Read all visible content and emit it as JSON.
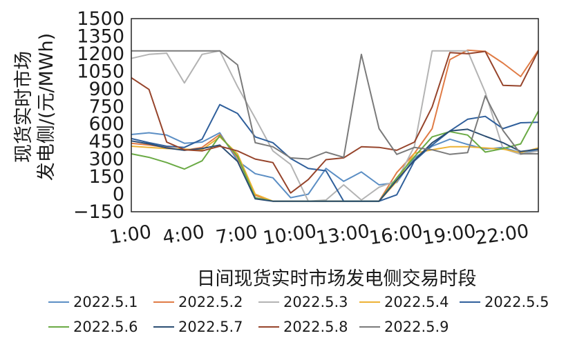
{
  "chart_data": {
    "type": "line",
    "xlabel": "日间现货实时市场发电侧交易时段",
    "ylabel_line1": "现货实时市场",
    "ylabel_line2": "发电侧/(元/MWh)",
    "x": [
      1,
      2,
      3,
      4,
      5,
      6,
      7,
      8,
      9,
      10,
      11,
      12,
      13,
      14,
      15,
      16,
      17,
      18,
      19,
      20,
      21,
      22,
      23,
      24
    ],
    "xtick_labels": [
      "1:00",
      "4:00",
      "7:00",
      "10:00",
      "13:00",
      "16:00",
      "19:00",
      "22:00"
    ],
    "xtick_positions": [
      1,
      4,
      7,
      10,
      13,
      16,
      19,
      22
    ],
    "ylim": [
      -150,
      1500
    ],
    "yticks": [
      -150,
      0,
      150,
      300,
      450,
      600,
      750,
      900,
      1050,
      1200,
      1350,
      1500
    ],
    "ytick_labels": [
      "−150",
      "0",
      "150",
      "300",
      "450",
      "600",
      "750",
      "900",
      "1050",
      "1200",
      "1350",
      "1500"
    ],
    "grid": false,
    "legend_position": "bottom",
    "series": [
      {
        "name": "2022.5.1",
        "color": "#5b8ec4",
        "values": [
          510,
          525,
          505,
          435,
          445,
          525,
          285,
          175,
          140,
          -30,
          0,
          220,
          110,
          190,
          80,
          100,
          310,
          410,
          470,
          425,
          385,
          400,
          355,
          375
        ]
      },
      {
        "name": "2022.5.2",
        "color": "#e07b45",
        "values": [
          435,
          420,
          400,
          375,
          400,
          510,
          310,
          -10,
          -60,
          -60,
          -60,
          -60,
          -60,
          -60,
          -60,
          185,
          350,
          560,
          1150,
          1230,
          1220,
          1120,
          1005,
          1230
        ]
      },
      {
        "name": "2022.5.3",
        "color": "#b3b3b3",
        "values": [
          1160,
          1195,
          1205,
          950,
          1195,
          1225,
          920,
          650,
          370,
          255,
          -60,
          -50,
          80,
          -50,
          60,
          115,
          410,
          1225,
          1225,
          1225,
          870,
          390,
          340,
          370
        ]
      },
      {
        "name": "2022.5.4",
        "color": "#edb234",
        "values": [
          410,
          400,
          390,
          385,
          380,
          490,
          345,
          0,
          -60,
          -60,
          -60,
          -60,
          -60,
          -60,
          -60,
          110,
          350,
          380,
          405,
          405,
          395,
          385,
          355,
          395
        ]
      },
      {
        "name": "2022.5.5",
        "color": "#2f5f9b",
        "values": [
          475,
          440,
          410,
          400,
          470,
          765,
          690,
          490,
          440,
          305,
          220,
          200,
          -60,
          -60,
          -60,
          -5,
          285,
          420,
          540,
          640,
          665,
          560,
          610,
          615
        ]
      },
      {
        "name": "2022.5.6",
        "color": "#6aaa44",
        "values": [
          345,
          315,
          270,
          215,
          285,
          500,
          325,
          -30,
          -60,
          -60,
          -60,
          -60,
          -60,
          -60,
          -60,
          140,
          320,
          490,
          535,
          505,
          360,
          390,
          430,
          710
        ]
      },
      {
        "name": "2022.5.7",
        "color": "#2b4d72",
        "values": [
          455,
          430,
          395,
          375,
          390,
          420,
          280,
          -40,
          -60,
          -60,
          -60,
          -60,
          -60,
          -60,
          -60,
          120,
          290,
          440,
          540,
          555,
          495,
          440,
          365,
          385
        ]
      },
      {
        "name": "2022.5.8",
        "color": "#96442b",
        "values": [
          995,
          895,
          445,
          380,
          370,
          410,
          370,
          300,
          270,
          10,
          125,
          295,
          310,
          405,
          400,
          375,
          445,
          745,
          1210,
          1200,
          1220,
          930,
          925,
          1225
        ]
      },
      {
        "name": "2022.5.9",
        "color": "#7a7a7a",
        "values": [
          1225,
          1225,
          1225,
          1225,
          1225,
          1225,
          1105,
          440,
          405,
          310,
          300,
          360,
          315,
          1195,
          560,
          340,
          400,
          380,
          340,
          355,
          840,
          545,
          345,
          345
        ]
      }
    ]
  }
}
